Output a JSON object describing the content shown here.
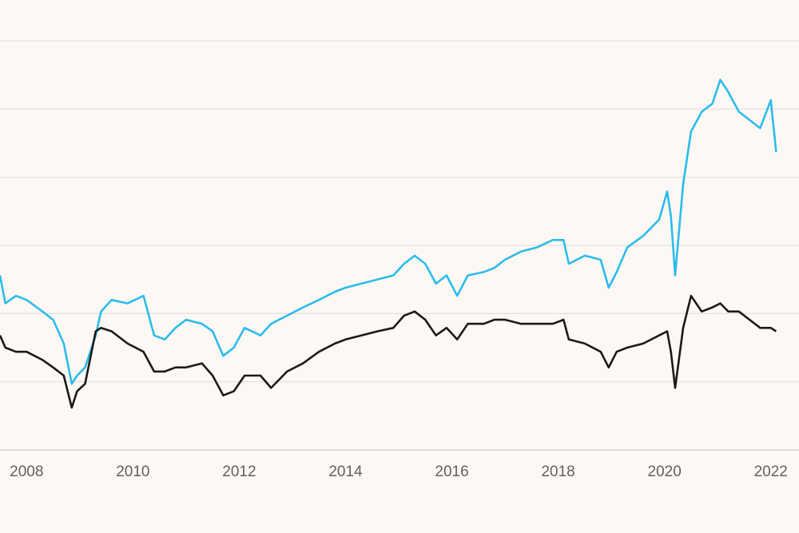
{
  "chart_data": {
    "type": "line",
    "x": [
      2007.5,
      2007.6,
      2007.8,
      2008.0,
      2008.3,
      2008.5,
      2008.7,
      2008.85,
      2008.95,
      2009.1,
      2009.3,
      2009.4,
      2009.6,
      2009.9,
      2010.2,
      2010.4,
      2010.6,
      2010.8,
      2011.0,
      2011.3,
      2011.5,
      2011.7,
      2011.9,
      2012.1,
      2012.4,
      2012.6,
      2012.9,
      2013.2,
      2013.5,
      2013.8,
      2014.0,
      2014.3,
      2014.6,
      2014.9,
      2015.1,
      2015.3,
      2015.5,
      2015.7,
      2015.9,
      2016.1,
      2016.3,
      2016.6,
      2016.8,
      2017.0,
      2017.3,
      2017.6,
      2017.9,
      2018.1,
      2018.2,
      2018.5,
      2018.8,
      2018.95,
      2019.1,
      2019.3,
      2019.6,
      2019.9,
      2020.05,
      2020.12,
      2020.2,
      2020.35,
      2020.5,
      2020.7,
      2020.9,
      2021.05,
      2021.2,
      2021.4,
      2021.6,
      2021.8,
      2022.0,
      2022.1
    ],
    "series": [
      {
        "color": "#2bbcec",
        "values": [
          2.56,
          2.15,
          2.26,
          2.2,
          2.03,
          1.91,
          1.56,
          0.97,
          1.09,
          1.21,
          1.68,
          2.03,
          2.2,
          2.15,
          2.26,
          1.68,
          1.62,
          1.79,
          1.91,
          1.85,
          1.74,
          1.38,
          1.5,
          1.79,
          1.68,
          1.85,
          1.97,
          2.09,
          2.2,
          2.32,
          2.38,
          2.44,
          2.5,
          2.56,
          2.73,
          2.85,
          2.73,
          2.44,
          2.56,
          2.26,
          2.56,
          2.61,
          2.67,
          2.79,
          2.91,
          2.97,
          3.08,
          3.08,
          2.73,
          2.85,
          2.79,
          2.38,
          2.61,
          2.97,
          3.14,
          3.38,
          3.79,
          3.43,
          2.56,
          3.9,
          4.67,
          4.96,
          5.08,
          5.43,
          5.25,
          4.96,
          4.84,
          4.72,
          5.13,
          4.37
        ]
      },
      {
        "color": "#1a1a1a",
        "values": [
          1.68,
          1.5,
          1.44,
          1.44,
          1.32,
          1.21,
          1.09,
          0.62,
          0.86,
          0.97,
          1.74,
          1.79,
          1.74,
          1.56,
          1.44,
          1.15,
          1.15,
          1.21,
          1.21,
          1.27,
          1.09,
          0.8,
          0.86,
          1.09,
          1.09,
          0.91,
          1.15,
          1.27,
          1.44,
          1.56,
          1.62,
          1.68,
          1.74,
          1.79,
          1.97,
          2.03,
          1.91,
          1.68,
          1.79,
          1.62,
          1.85,
          1.85,
          1.91,
          1.91,
          1.85,
          1.85,
          1.85,
          1.91,
          1.62,
          1.56,
          1.44,
          1.21,
          1.44,
          1.5,
          1.56,
          1.68,
          1.74,
          1.44,
          0.91,
          1.79,
          2.26,
          2.03,
          2.09,
          2.15,
          2.03,
          2.03,
          1.91,
          1.79,
          1.79,
          1.74
        ]
      }
    ],
    "xlim": [
      2007.5,
      2022.53
    ],
    "xticks": [
      2008,
      2010,
      2012,
      2014,
      2016,
      2018,
      2020,
      2022
    ],
    "ylim": [
      0,
      6.6
    ],
    "yticks": [
      0,
      1,
      2,
      3,
      4,
      5,
      6
    ],
    "grid": true
  }
}
